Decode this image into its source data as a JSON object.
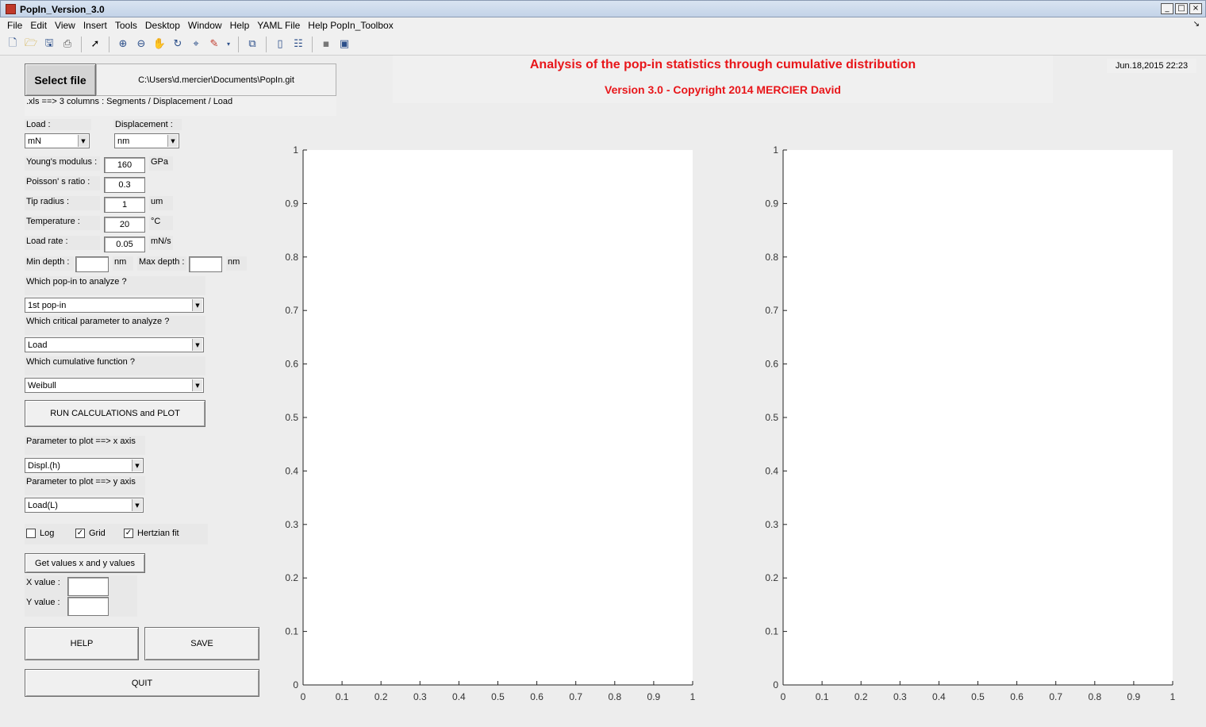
{
  "window": {
    "title": "PopIn_Version_3.0",
    "min": "_",
    "max": "□",
    "close": "×"
  },
  "menu": [
    "File",
    "Edit",
    "View",
    "Insert",
    "Tools",
    "Desktop",
    "Window",
    "Help",
    "YAML File",
    "Help PopIn_Toolbox"
  ],
  "header": {
    "title": "Analysis of the pop-in statistics through cumulative distribution",
    "subtitle": "Version 3.0 - Copyright 2014 MERCIER David",
    "date": "Jun.18,2015 22:23",
    "title_color": "#e8161a"
  },
  "file": {
    "button": "Select file",
    "path": "C:\\Users\\d.mercier\\Documents\\PopIn.git",
    "hint": ".xls ==> 3 columns : Segments / Displacement / Load"
  },
  "units": {
    "load_label": "Load :",
    "load_value": "mN",
    "disp_label": "Displacement :",
    "disp_value": "nm"
  },
  "params": [
    {
      "label": "Young's modulus :",
      "value": "160",
      "unit": "GPa"
    },
    {
      "label": "Poisson' s ratio :",
      "value": "0.3",
      "unit": ""
    },
    {
      "label": "Tip radius :",
      "value": "1",
      "unit": "um"
    },
    {
      "label": "Temperature :",
      "value": "20",
      "unit": "°C"
    },
    {
      "label": "Load rate :",
      "value": "0.05",
      "unit": "mN/s"
    }
  ],
  "depth": {
    "min_label": "Min depth :",
    "min_unit": "nm",
    "max_label": "Max depth :",
    "max_unit": "nm"
  },
  "popin": {
    "label": "Which pop-in to analyze ?",
    "value": "1st pop-in"
  },
  "critical": {
    "label": "Which critical parameter to analyze ?",
    "value": "Load"
  },
  "cumulative": {
    "label": "Which cumulative function ?",
    "value": "Weibull"
  },
  "run_button": "RUN CALCULATIONS and PLOT",
  "plot_x": {
    "label": "Parameter to plot ==> x axis",
    "value": "Displ.(h)"
  },
  "plot_y": {
    "label": "Parameter to plot ==> y axis",
    "value": "Load(L)"
  },
  "checks": {
    "log": {
      "label": "Log",
      "checked": false
    },
    "grid": {
      "label": "Grid",
      "checked": true
    },
    "hertz": {
      "label": "Hertzian fit",
      "checked": true
    }
  },
  "getvalues": {
    "button": "Get values x and y values",
    "x_label": "X value :",
    "y_label": "Y value :"
  },
  "buttons": {
    "help": "HELP",
    "save": "SAVE",
    "quit": "QUIT"
  },
  "chart_data": [
    {
      "type": "line",
      "series": [],
      "xlim": [
        0,
        1
      ],
      "ylim": [
        0,
        1
      ],
      "xticks": [
        "0",
        "0.1",
        "0.2",
        "0.3",
        "0.4",
        "0.5",
        "0.6",
        "0.7",
        "0.8",
        "0.9",
        "1"
      ],
      "yticks": [
        "0",
        "0.1",
        "0.2",
        "0.3",
        "0.4",
        "0.5",
        "0.6",
        "0.7",
        "0.8",
        "0.9",
        "1"
      ],
      "title": "",
      "xlabel": "",
      "ylabel": "",
      "grid": false
    },
    {
      "type": "line",
      "series": [],
      "xlim": [
        0,
        1
      ],
      "ylim": [
        0,
        1
      ],
      "xticks": [
        "0",
        "0.1",
        "0.2",
        "0.3",
        "0.4",
        "0.5",
        "0.6",
        "0.7",
        "0.8",
        "0.9",
        "1"
      ],
      "yticks": [
        "0",
        "0.1",
        "0.2",
        "0.3",
        "0.4",
        "0.5",
        "0.6",
        "0.7",
        "0.8",
        "0.9",
        "1"
      ],
      "title": "",
      "xlabel": "",
      "ylabel": "",
      "grid": false
    }
  ]
}
